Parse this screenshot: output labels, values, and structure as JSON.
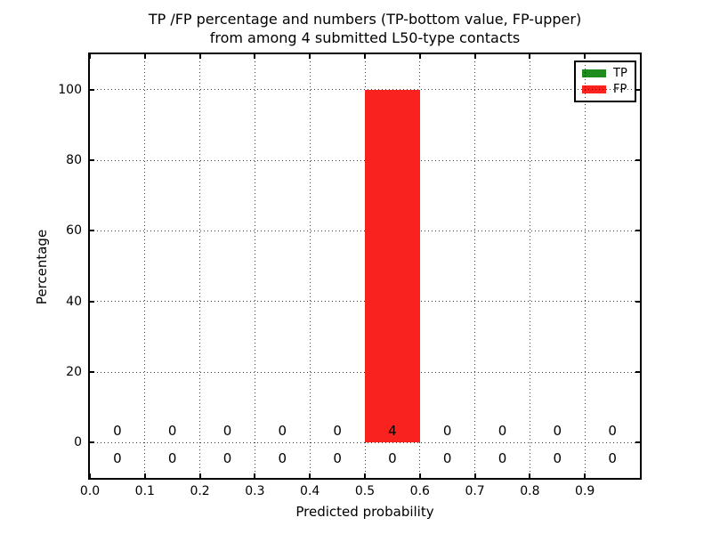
{
  "figure": {
    "title_line1": "TP /FP percentage and numbers (TP-bottom value, FP-upper)",
    "title_line2": "from among 4 submitted L50-type contacts"
  },
  "chart_data": {
    "type": "bar",
    "title": "TP /FP percentage and numbers (TP-bottom value, FP-upper) from among 4 submitted L50-type contacts",
    "xlabel": "Predicted probability",
    "ylabel": "Percentage",
    "xlim": [
      0.0,
      1.0
    ],
    "ylim": [
      -10,
      110
    ],
    "grid": true,
    "grid_style": "dotted",
    "legend_position": "upper right",
    "x_ticks": [
      0.0,
      0.1,
      0.2,
      0.3,
      0.4,
      0.5,
      0.6,
      0.7,
      0.8,
      0.9
    ],
    "x_tick_labels": [
      "0.0",
      "0.1",
      "0.2",
      "0.3",
      "0.4",
      "0.5",
      "0.6",
      "0.7",
      "0.8",
      "0.9"
    ],
    "y_ticks": [
      0,
      20,
      40,
      60,
      80,
      100
    ],
    "bin_width": 0.1,
    "bin_centers": [
      0.05,
      0.15,
      0.25,
      0.35,
      0.45,
      0.55,
      0.65,
      0.75,
      0.85,
      0.95
    ],
    "total_submitted": 4,
    "series": [
      {
        "name": "TP",
        "color": "#1e8c1e",
        "percent": [
          0,
          0,
          0,
          0,
          0,
          0,
          0,
          0,
          0,
          0
        ],
        "counts": [
          0,
          0,
          0,
          0,
          0,
          0,
          0,
          0,
          0,
          0
        ],
        "count_label_row": "bottom"
      },
      {
        "name": "FP",
        "color": "#fa221e",
        "percent": [
          0,
          0,
          0,
          0,
          0,
          100,
          0,
          0,
          0,
          0
        ],
        "counts": [
          0,
          0,
          0,
          0,
          0,
          4,
          0,
          0,
          0,
          0
        ],
        "count_label_row": "top"
      }
    ]
  }
}
